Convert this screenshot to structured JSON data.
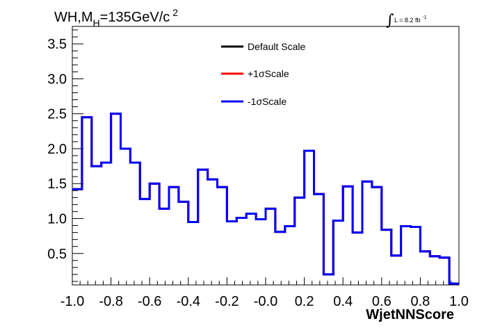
{
  "chart_data": {
    "type": "line",
    "title": {
      "prefix": "WH,M",
      "subscript": "H",
      "middle": "=135GeV/c",
      "superscript": "2"
    },
    "lumi": {
      "symbol": "∫",
      "text": "L = 8.2 fb",
      "superscript": "-1"
    },
    "xlabel": "WjetNNScore",
    "ylabel": "",
    "xlim": [
      -1.0,
      1.0
    ],
    "ylim": [
      0.05,
      3.75
    ],
    "x_ticks": [
      "-1.0",
      "-0.8",
      "-0.6",
      "-0.4",
      "-0.2",
      "-0.0",
      "0.2",
      "0.4",
      "0.6",
      "0.8",
      "1.0"
    ],
    "y_ticks": [
      "0.5",
      "1.0",
      "1.5",
      "2.0",
      "2.5",
      "3.0",
      "3.5"
    ],
    "bin_edges": [
      -1.0,
      -0.95,
      -0.9,
      -0.85,
      -0.8,
      -0.75,
      -0.7,
      -0.65,
      -0.6,
      -0.55,
      -0.5,
      -0.45,
      -0.4,
      -0.35,
      -0.3,
      -0.25,
      -0.2,
      -0.15,
      -0.1,
      -0.05,
      0.0,
      0.05,
      0.1,
      0.15,
      0.2,
      0.25,
      0.3,
      0.35,
      0.4,
      0.45,
      0.5,
      0.55,
      0.6,
      0.65,
      0.7,
      0.75,
      0.8,
      0.85,
      0.9,
      0.95,
      1.0
    ],
    "series": [
      {
        "name": "Default Scale",
        "color": "#000000",
        "values": [
          1.42,
          2.45,
          1.75,
          1.8,
          2.5,
          2.0,
          1.8,
          1.28,
          1.5,
          1.14,
          1.45,
          1.24,
          0.95,
          1.7,
          1.56,
          1.45,
          0.96,
          1.01,
          1.07,
          0.99,
          1.14,
          0.81,
          0.89,
          1.3,
          1.97,
          1.35,
          0.2,
          0.97,
          1.46,
          0.8,
          1.53,
          1.45,
          0.84,
          0.47,
          0.89,
          0.88,
          0.53,
          0.46,
          0.44,
          0.07
        ]
      },
      {
        "name": "+1σScale",
        "color": "#ff0000",
        "values": [
          1.42,
          2.45,
          1.75,
          1.8,
          2.5,
          2.0,
          1.8,
          1.28,
          1.5,
          1.14,
          1.45,
          1.24,
          0.95,
          1.7,
          1.56,
          1.45,
          0.96,
          1.01,
          1.07,
          0.99,
          1.14,
          0.81,
          0.89,
          1.3,
          1.97,
          1.35,
          0.2,
          0.97,
          1.46,
          0.8,
          1.53,
          1.45,
          0.84,
          0.47,
          0.89,
          0.88,
          0.53,
          0.46,
          0.44,
          0.07
        ]
      },
      {
        "name": "-1σScale",
        "color": "#0000ff",
        "values": [
          1.42,
          2.45,
          1.75,
          1.8,
          2.5,
          2.0,
          1.8,
          1.28,
          1.5,
          1.14,
          1.45,
          1.24,
          0.95,
          1.7,
          1.56,
          1.45,
          0.96,
          1.01,
          1.07,
          0.99,
          1.14,
          0.81,
          0.89,
          1.3,
          1.97,
          1.35,
          0.2,
          0.97,
          1.46,
          0.8,
          1.53,
          1.45,
          0.84,
          0.47,
          0.89,
          0.88,
          0.53,
          0.46,
          0.44,
          0.07
        ]
      }
    ],
    "legend_position": "top-center",
    "grid": false
  }
}
